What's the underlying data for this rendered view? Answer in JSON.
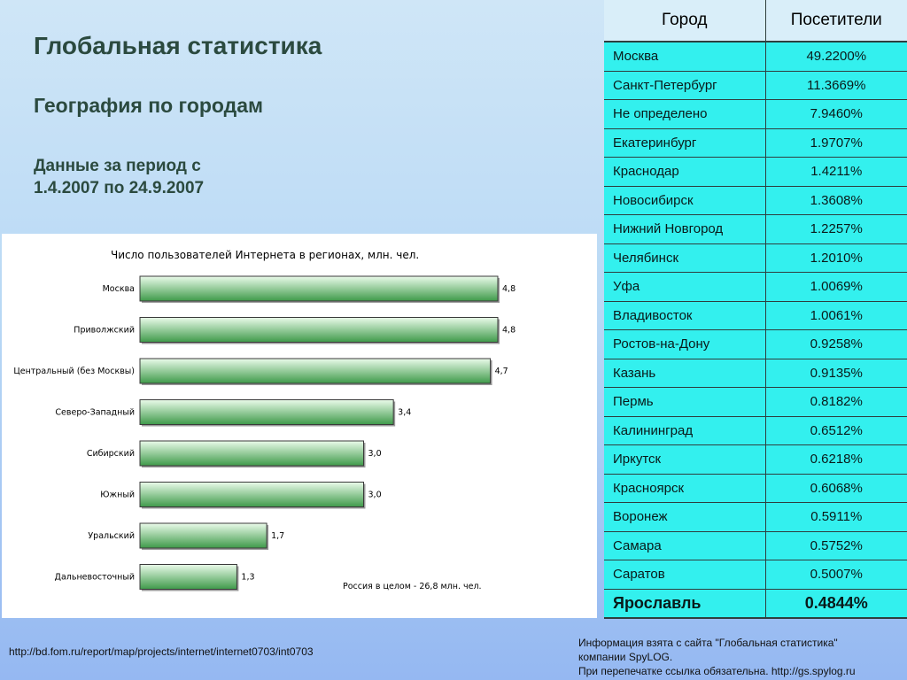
{
  "slide": {
    "title": "Глобальная статистика",
    "subtitle": "География по городам",
    "period_line1": "Данные за период с",
    "period_line2": "1.4.2007 по 24.9.2007"
  },
  "table": {
    "col_city": "Город",
    "col_visitors": "Посетители",
    "rows": [
      {
        "city": "Москва",
        "value": "49.2200%"
      },
      {
        "city": "Санкт-Петербург",
        "value": "11.3669%"
      },
      {
        "city": "Не определено",
        "value": "7.9460%"
      },
      {
        "city": "Екатеринбург",
        "value": "1.9707%"
      },
      {
        "city": "Краснодар",
        "value": "1.4211%"
      },
      {
        "city": "Новосибирск",
        "value": "1.3608%"
      },
      {
        "city": "Нижний Новгород",
        "value": "1.2257%"
      },
      {
        "city": "Челябинск",
        "value": "1.2010%"
      },
      {
        "city": "Уфа",
        "value": "1.0069%"
      },
      {
        "city": "Владивосток",
        "value": "1.0061%"
      },
      {
        "city": "Ростов-на-Дону",
        "value": "0.9258%"
      },
      {
        "city": "Казань",
        "value": "0.9135%"
      },
      {
        "city": "Пермь",
        "value": "0.8182%"
      },
      {
        "city": "Калининград",
        "value": "0.6512%"
      },
      {
        "city": "Иркутск",
        "value": "0.6218%"
      },
      {
        "city": "Красноярск",
        "value": "0.6068%"
      },
      {
        "city": "Воронеж",
        "value": "0.5911%"
      },
      {
        "city": "Самара",
        "value": "0.5752%"
      },
      {
        "city": "Саратов",
        "value": "0.5007%"
      },
      {
        "city": "Ярославль",
        "value": "0.4844%"
      }
    ]
  },
  "chart_data": {
    "type": "bar",
    "orientation": "horizontal",
    "title": "Число пользователей Интернета  в регионах, млн. чел.",
    "categories": [
      "Москва",
      "Приволжский",
      "Центральный (без Москвы)",
      "Северо-Западный",
      "Сибирский",
      "Южный",
      "Уральский",
      "Дальневосточный"
    ],
    "values": [
      4.8,
      4.8,
      4.7,
      3.4,
      3.0,
      3.0,
      1.7,
      1.3
    ],
    "value_labels": [
      "4,8",
      "4,8",
      "4,7",
      "3,4",
      "3,0",
      "3,0",
      "1,7",
      "1,3"
    ],
    "xlim": [
      0,
      4.8
    ],
    "grid": false,
    "annotation": "Россия в целом - 26,8 млн. чел.",
    "colors": {
      "bar_light": "#eafbea",
      "bar_dark": "#3f9a4a",
      "bar_border": "#3a3a3a"
    }
  },
  "footer": {
    "source_url": "http://bd.fom.ru/report/map/projects/internet/internet0703/int0703",
    "credit_line1": "Информация взята с сайта \"Глобальная статистика\"",
    "credit_line2": "компании SpyLOG.",
    "credit_line3": "При перепечатке ссылка обязательна. http://gs.spylog.ru"
  }
}
